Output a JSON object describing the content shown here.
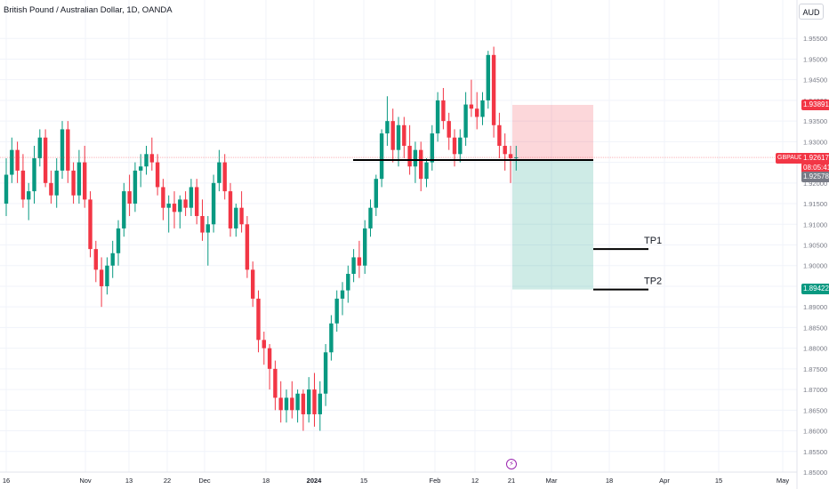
{
  "header": {
    "title": "British Pound / Australian Dollar, 1D, OANDA",
    "currency_button": "AUD"
  },
  "colors": {
    "up": "#089981",
    "down": "#f23645",
    "grid": "#f0f3fa",
    "axis_text": "#787b86",
    "stop_zone": "rgba(242,54,69,0.2)",
    "target_zone": "rgba(8,153,129,0.2)"
  },
  "badges": {
    "stop_price": "1.93891",
    "symbol": "GBPAUD",
    "last_price": "1.92617",
    "countdown": "08:05:41",
    "entry_price": "1.92578",
    "target_price": "1.89422"
  },
  "annotations": {
    "tp1": "TP1",
    "tp2": "TP2"
  },
  "chart_data": {
    "type": "candlestick",
    "title": "British Pound / Australian Dollar, 1D, OANDA",
    "ylim": [
      1.85,
      1.96
    ],
    "y_ticks": [
      "1.95500",
      "1.95000",
      "1.94500",
      "1.94000",
      "1.93500",
      "1.93000",
      "1.92500",
      "1.92000",
      "1.91500",
      "1.91000",
      "1.90500",
      "1.90000",
      "1.89500",
      "1.89000",
      "1.88500",
      "1.88000",
      "1.87500",
      "1.87000",
      "1.86500",
      "1.86000",
      "1.85500",
      "1.85000"
    ],
    "x_ticks": [
      "16",
      "Nov",
      "13",
      "22",
      "Dec",
      "18",
      "2024",
      "15",
      "Feb",
      "12",
      "21",
      "Mar",
      "18",
      "Apr",
      "15",
      "May"
    ],
    "candles": [
      [
        1.915,
        1.926,
        1.912,
        1.922
      ],
      [
        1.922,
        1.931,
        1.92,
        1.928
      ],
      [
        1.928,
        1.93,
        1.92,
        1.923
      ],
      [
        1.923,
        1.927,
        1.914,
        1.916
      ],
      [
        1.916,
        1.92,
        1.911,
        1.918
      ],
      [
        1.918,
        1.929,
        1.915,
        1.926
      ],
      [
        1.926,
        1.933,
        1.924,
        1.931
      ],
      [
        1.931,
        1.933,
        1.919,
        1.92
      ],
      [
        1.92,
        1.923,
        1.915,
        1.917
      ],
      [
        1.917,
        1.926,
        1.914,
        1.923
      ],
      [
        1.923,
        1.935,
        1.921,
        1.933
      ],
      [
        1.933,
        1.935,
        1.92,
        1.923
      ],
      [
        1.923,
        1.925,
        1.915,
        1.917
      ],
      [
        1.917,
        1.928,
        1.915,
        1.925
      ],
      [
        1.925,
        1.929,
        1.914,
        1.916
      ],
      [
        1.916,
        1.918,
        1.902,
        1.904
      ],
      [
        1.904,
        1.906,
        1.896,
        1.899
      ],
      [
        1.899,
        1.902,
        1.89,
        1.895
      ],
      [
        1.895,
        1.902,
        1.893,
        1.9
      ],
      [
        1.9,
        1.906,
        1.897,
        1.903
      ],
      [
        1.903,
        1.911,
        1.9,
        1.909
      ],
      [
        1.909,
        1.92,
        1.907,
        1.918
      ],
      [
        1.918,
        1.922,
        1.912,
        1.915
      ],
      [
        1.915,
        1.925,
        1.913,
        1.923
      ],
      [
        1.923,
        1.927,
        1.919,
        1.924
      ],
      [
        1.924,
        1.929,
        1.922,
        1.927
      ],
      [
        1.927,
        1.931,
        1.923,
        1.925
      ],
      [
        1.925,
        1.927,
        1.917,
        1.919
      ],
      [
        1.919,
        1.921,
        1.911,
        1.914
      ],
      [
        1.914,
        1.917,
        1.908,
        1.915
      ],
      [
        1.915,
        1.918,
        1.909,
        1.913
      ],
      [
        1.913,
        1.917,
        1.909,
        1.916
      ],
      [
        1.916,
        1.918,
        1.912,
        1.914
      ],
      [
        1.914,
        1.921,
        1.912,
        1.919
      ],
      [
        1.919,
        1.921,
        1.91,
        1.912
      ],
      [
        1.912,
        1.916,
        1.906,
        1.908
      ],
      [
        1.908,
        1.912,
        1.9,
        1.91
      ],
      [
        1.91,
        1.922,
        1.908,
        1.92
      ],
      [
        1.92,
        1.928,
        1.918,
        1.925
      ],
      [
        1.925,
        1.927,
        1.916,
        1.918
      ],
      [
        1.918,
        1.92,
        1.907,
        1.909
      ],
      [
        1.909,
        1.915,
        1.907,
        1.914
      ],
      [
        1.914,
        1.918,
        1.908,
        1.91
      ],
      [
        1.91,
        1.912,
        1.897,
        1.899
      ],
      [
        1.899,
        1.901,
        1.89,
        1.892
      ],
      [
        1.892,
        1.894,
        1.879,
        1.882
      ],
      [
        1.882,
        1.884,
        1.876,
        1.88
      ],
      [
        1.88,
        1.881,
        1.87,
        1.875
      ],
      [
        1.875,
        1.877,
        1.865,
        1.868
      ],
      [
        1.868,
        1.872,
        1.862,
        1.865
      ],
      [
        1.865,
        1.87,
        1.862,
        1.868
      ],
      [
        1.868,
        1.872,
        1.863,
        1.865
      ],
      [
        1.865,
        1.87,
        1.862,
        1.869
      ],
      [
        1.869,
        1.87,
        1.86,
        1.864
      ],
      [
        1.864,
        1.873,
        1.862,
        1.87
      ],
      [
        1.87,
        1.874,
        1.861,
        1.864
      ],
      [
        1.864,
        1.872,
        1.86,
        1.869
      ],
      [
        1.869,
        1.881,
        1.866,
        1.879
      ],
      [
        1.879,
        1.888,
        1.877,
        1.886
      ],
      [
        1.886,
        1.894,
        1.884,
        1.892
      ],
      [
        1.892,
        1.896,
        1.888,
        1.894
      ],
      [
        1.894,
        1.9,
        1.891,
        1.898
      ],
      [
        1.898,
        1.904,
        1.896,
        1.902
      ],
      [
        1.902,
        1.906,
        1.897,
        1.9
      ],
      [
        1.9,
        1.911,
        1.898,
        1.909
      ],
      [
        1.909,
        1.916,
        1.907,
        1.914
      ],
      [
        1.914,
        1.922,
        1.912,
        1.921
      ],
      [
        1.921,
        1.933,
        1.919,
        1.932
      ],
      [
        1.932,
        1.941,
        1.929,
        1.935
      ],
      [
        1.935,
        1.938,
        1.925,
        1.928
      ],
      [
        1.928,
        1.936,
        1.924,
        1.934
      ],
      [
        1.934,
        1.936,
        1.926,
        1.929
      ],
      [
        1.929,
        1.934,
        1.922,
        1.924
      ],
      [
        1.924,
        1.93,
        1.92,
        1.928
      ],
      [
        1.928,
        1.93,
        1.918,
        1.921
      ],
      [
        1.921,
        1.926,
        1.919,
        1.925
      ],
      [
        1.925,
        1.934,
        1.923,
        1.932
      ],
      [
        1.932,
        1.942,
        1.93,
        1.94
      ],
      [
        1.94,
        1.943,
        1.933,
        1.935
      ],
      [
        1.935,
        1.937,
        1.928,
        1.931
      ],
      [
        1.931,
        1.933,
        1.924,
        1.927
      ],
      [
        1.927,
        1.933,
        1.925,
        1.931
      ],
      [
        1.931,
        1.942,
        1.929,
        1.939
      ],
      [
        1.939,
        1.945,
        1.936,
        1.938
      ],
      [
        1.938,
        1.942,
        1.933,
        1.936
      ],
      [
        1.936,
        1.942,
        1.934,
        1.94
      ],
      [
        1.94,
        1.952,
        1.938,
        1.951
      ],
      [
        1.951,
        1.953,
        1.931,
        1.934
      ],
      [
        1.934,
        1.937,
        1.926,
        1.929
      ],
      [
        1.929,
        1.932,
        1.923,
        1.927
      ],
      [
        1.927,
        1.929,
        1.92,
        1.926
      ],
      [
        1.926,
        1.929,
        1.923,
        1.9262
      ]
    ],
    "levels": {
      "horizontal_line": 1.9262,
      "stop": 1.93891,
      "entry": 1.92578,
      "target": 1.89422,
      "tp1": 1.904,
      "tp2": 1.8942
    }
  }
}
